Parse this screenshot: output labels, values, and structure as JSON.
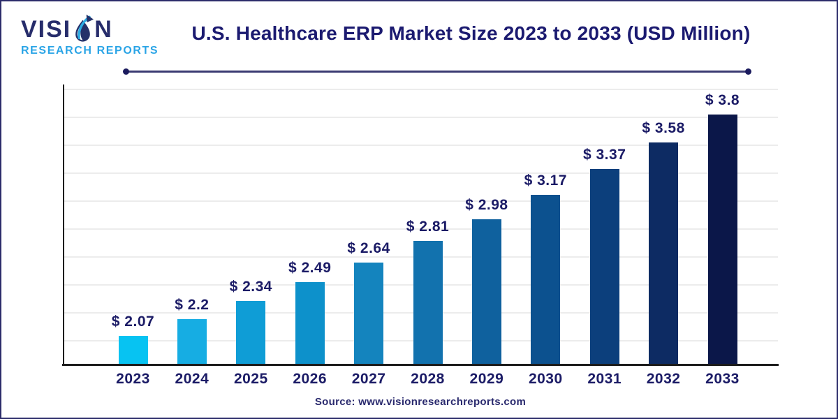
{
  "brand": {
    "name_pre": "VISI",
    "name_post": "N",
    "subtitle": "RESEARCH REPORTS",
    "droplet_icon": "water-droplet-arrow-icon"
  },
  "footer": {
    "source": "Source: www.visionresearchreports.com"
  },
  "colors": {
    "title_text": "#1B1A70",
    "label_text": "#1B1B66",
    "axis": "#1C1C1C",
    "grid": "#ECECEC",
    "divider": "#3A3A72",
    "canvas_border": "#2D2D6B",
    "brand_primary": "#272D6B",
    "brand_secondary": "#2AA4E6"
  },
  "chart_data": {
    "type": "bar",
    "title": "U.S. Healthcare ERP Market Size 2023 to 2033 (USD Million)",
    "unit": "USD Million",
    "categories": [
      "2023",
      "2024",
      "2025",
      "2026",
      "2027",
      "2028",
      "2029",
      "2030",
      "2031",
      "2032",
      "2033"
    ],
    "values": [
      2.07,
      2.2,
      2.34,
      2.49,
      2.64,
      2.81,
      2.98,
      3.17,
      3.37,
      3.58,
      3.8
    ],
    "value_labels": [
      "$ 2.07",
      "$ 2.2",
      "$ 2.34",
      "$ 2.49",
      "$ 2.64",
      "$ 2.81",
      "$ 2.98",
      "$ 3.17",
      "$ 3.37",
      "$ 3.58",
      "$ 3.8"
    ],
    "bar_colors": [
      "#07C3F2",
      "#16ADE3",
      "#0F9DD6",
      "#0D91CB",
      "#1484BE",
      "#1272AE",
      "#0F619E",
      "#0C518F",
      "#0C3F7C",
      "#0D2B63",
      "#0B1749"
    ],
    "xlabel": "",
    "ylabel": "",
    "ylim": [
      1.85,
      4.0
    ],
    "grid": true,
    "gridline_count": 10,
    "legend": false
  }
}
